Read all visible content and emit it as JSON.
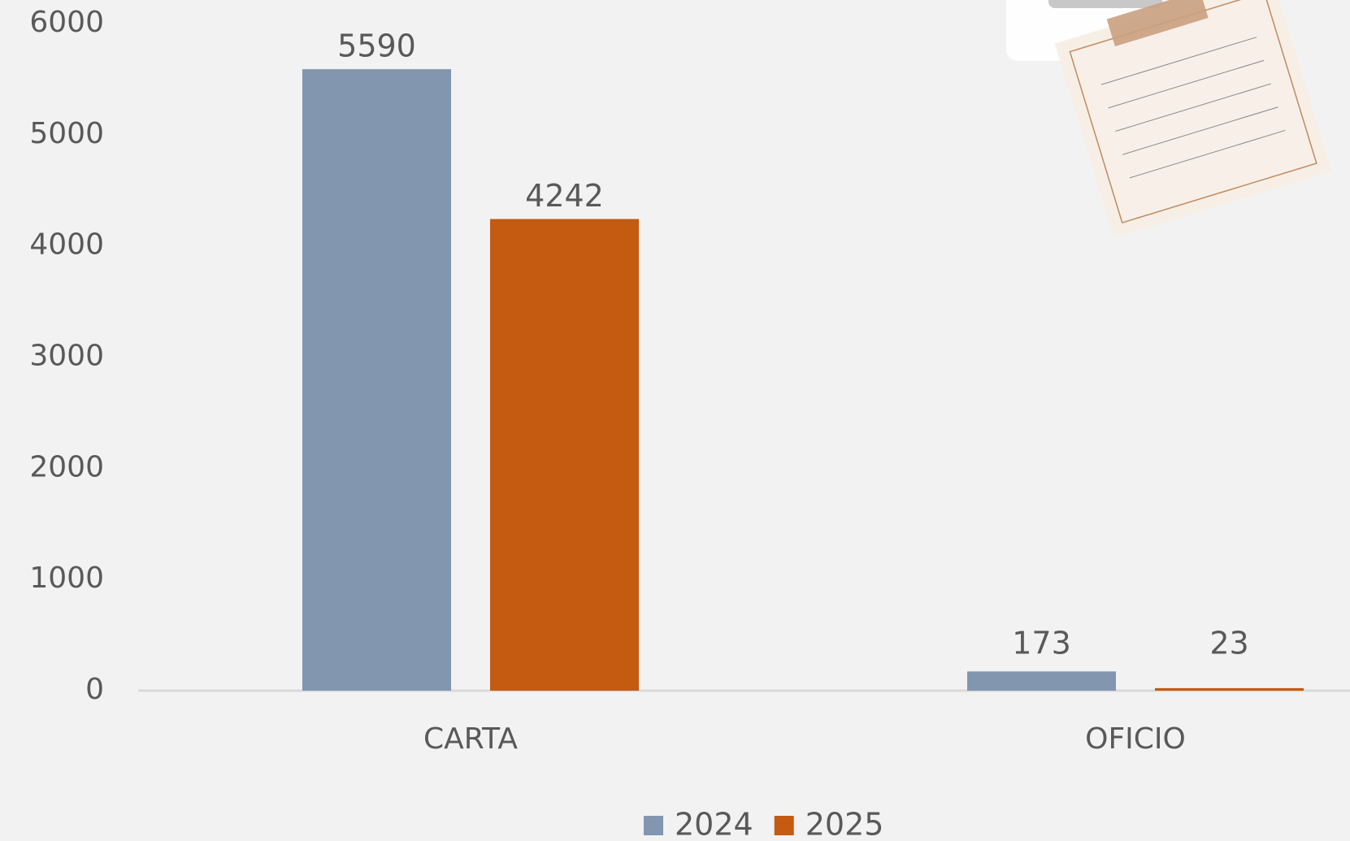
{
  "chart_data": {
    "type": "bar",
    "categories": [
      "CARTA",
      "OFICIO"
    ],
    "series": [
      {
        "name": "2024",
        "color": "#8296b0",
        "values": [
          5590,
          173
        ]
      },
      {
        "name": "2025",
        "color": "#c55a11",
        "values": [
          4242,
          23
        ]
      }
    ],
    "ylim": [
      0,
      6000
    ],
    "yticks": [
      0,
      1000,
      2000,
      3000,
      4000,
      5000,
      6000
    ],
    "legend": "bottom"
  }
}
